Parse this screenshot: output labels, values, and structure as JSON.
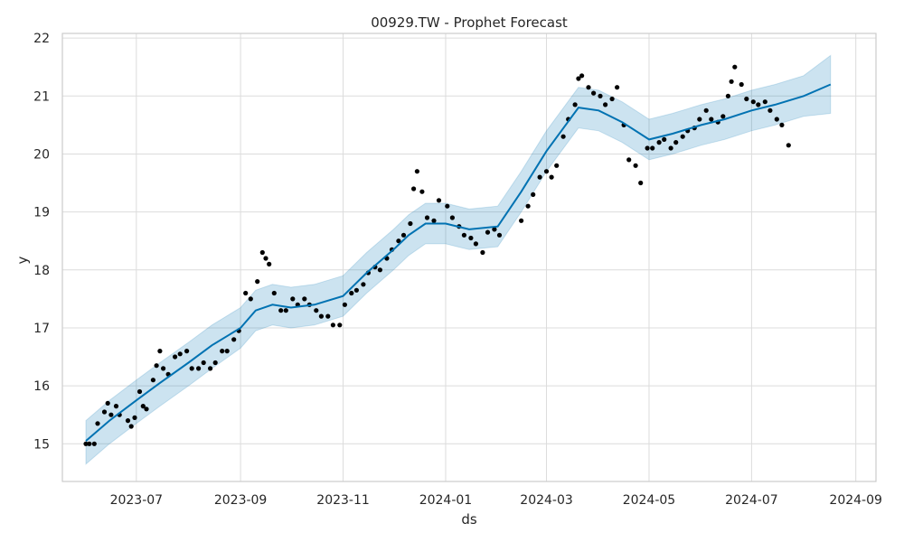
{
  "chart_data": {
    "type": "line",
    "title": "00929.TW - Prophet Forecast",
    "xlabel": "ds",
    "ylabel": "y",
    "x_ticks": [
      "2023-07",
      "2023-09",
      "2023-11",
      "2024-01",
      "2024-03",
      "2024-05",
      "2024-07",
      "2024-09"
    ],
    "y_ticks": [
      15,
      16,
      17,
      18,
      19,
      20,
      21,
      22
    ],
    "xlim": [
      "2023-05-18",
      "2024-09-13"
    ],
    "ylim": [
      14.35,
      22.08
    ],
    "grid": true,
    "colors": {
      "forecast": "#0072b2",
      "interval": "#0072b2",
      "points": "#000000",
      "grid": "#dcdcdc",
      "frame": "#cccccc"
    },
    "series": [
      {
        "kind": "forecast",
        "x": [
          "2023-06-01",
          "2023-06-15",
          "2023-07-01",
          "2023-07-15",
          "2023-08-01",
          "2023-08-15",
          "2023-09-01",
          "2023-09-10",
          "2023-09-20",
          "2023-10-01",
          "2023-10-15",
          "2023-11-01",
          "2023-11-15",
          "2023-12-01",
          "2023-12-10",
          "2023-12-20",
          "2024-01-01",
          "2024-01-15",
          "2024-02-01",
          "2024-02-15",
          "2024-03-01",
          "2024-03-20",
          "2024-04-01",
          "2024-04-15",
          "2024-05-01",
          "2024-05-15",
          "2024-06-01",
          "2024-06-15",
          "2024-07-01",
          "2024-07-15",
          "2024-08-01",
          "2024-08-17"
        ],
        "y": [
          15.05,
          15.4,
          15.75,
          16.05,
          16.4,
          16.7,
          17.0,
          17.3,
          17.4,
          17.35,
          17.4,
          17.55,
          17.95,
          18.35,
          18.6,
          18.8,
          18.8,
          18.7,
          18.75,
          19.35,
          20.05,
          20.8,
          20.75,
          20.55,
          20.25,
          20.35,
          20.5,
          20.6,
          20.75,
          20.85,
          21.0,
          21.2
        ]
      },
      {
        "kind": "uncertainty",
        "x": [
          "2023-06-01",
          "2023-06-15",
          "2023-07-01",
          "2023-07-15",
          "2023-08-01",
          "2023-08-15",
          "2023-09-01",
          "2023-09-10",
          "2023-09-20",
          "2023-10-01",
          "2023-10-15",
          "2023-11-01",
          "2023-11-15",
          "2023-12-01",
          "2023-12-10",
          "2023-12-20",
          "2024-01-01",
          "2024-01-15",
          "2024-02-01",
          "2024-02-15",
          "2024-03-01",
          "2024-03-20",
          "2024-04-01",
          "2024-04-15",
          "2024-05-01",
          "2024-05-15",
          "2024-06-01",
          "2024-06-15",
          "2024-07-01",
          "2024-07-15",
          "2024-08-01",
          "2024-08-17"
        ],
        "lower": [
          14.65,
          15.0,
          15.35,
          15.65,
          16.0,
          16.3,
          16.65,
          16.95,
          17.05,
          17.0,
          17.05,
          17.2,
          17.6,
          18.0,
          18.25,
          18.45,
          18.45,
          18.35,
          18.4,
          19.0,
          19.7,
          20.45,
          20.4,
          20.2,
          19.9,
          20.0,
          20.15,
          20.25,
          20.4,
          20.5,
          20.65,
          20.7
        ],
        "upper": [
          15.4,
          15.75,
          16.1,
          16.4,
          16.75,
          17.05,
          17.35,
          17.65,
          17.75,
          17.7,
          17.75,
          17.9,
          18.3,
          18.7,
          18.95,
          19.15,
          19.15,
          19.05,
          19.1,
          19.7,
          20.4,
          21.15,
          21.1,
          20.9,
          20.6,
          20.7,
          20.85,
          20.95,
          21.1,
          21.2,
          21.35,
          21.7
        ]
      },
      {
        "kind": "actual",
        "x": [
          "2023-06-01",
          "2023-06-03",
          "2023-06-06",
          "2023-06-08",
          "2023-06-12",
          "2023-06-14",
          "2023-06-16",
          "2023-06-19",
          "2023-06-21",
          "2023-06-26",
          "2023-06-28",
          "2023-06-30",
          "2023-07-03",
          "2023-07-05",
          "2023-07-07",
          "2023-07-11",
          "2023-07-13",
          "2023-07-15",
          "2023-07-17",
          "2023-07-20",
          "2023-07-24",
          "2023-07-27",
          "2023-07-31",
          "2023-08-03",
          "2023-08-07",
          "2023-08-10",
          "2023-08-14",
          "2023-08-17",
          "2023-08-21",
          "2023-08-24",
          "2023-08-28",
          "2023-08-31",
          "2023-09-04",
          "2023-09-07",
          "2023-09-11",
          "2023-09-14",
          "2023-09-16",
          "2023-09-18",
          "2023-09-21",
          "2023-09-25",
          "2023-09-28",
          "2023-10-02",
          "2023-10-05",
          "2023-10-09",
          "2023-10-12",
          "2023-10-16",
          "2023-10-19",
          "2023-10-23",
          "2023-10-26",
          "2023-10-30",
          "2023-11-02",
          "2023-11-06",
          "2023-11-09",
          "2023-11-13",
          "2023-11-16",
          "2023-11-20",
          "2023-11-23",
          "2023-11-27",
          "2023-11-30",
          "2023-12-04",
          "2023-12-07",
          "2023-12-11",
          "2023-12-13",
          "2023-12-15",
          "2023-12-18",
          "2023-12-21",
          "2023-12-25",
          "2023-12-28",
          "2024-01-02",
          "2024-01-05",
          "2024-01-09",
          "2024-01-12",
          "2024-01-16",
          "2024-01-19",
          "2024-01-23",
          "2024-01-26",
          "2024-01-30",
          "2024-02-02",
          "2024-02-15",
          "2024-02-19",
          "2024-02-22",
          "2024-02-26",
          "2024-03-01",
          "2024-03-04",
          "2024-03-07",
          "2024-03-11",
          "2024-03-14",
          "2024-03-18",
          "2024-03-20",
          "2024-03-22",
          "2024-03-26",
          "2024-03-29",
          "2024-04-02",
          "2024-04-05",
          "2024-04-09",
          "2024-04-12",
          "2024-04-16",
          "2024-04-19",
          "2024-04-23",
          "2024-04-26",
          "2024-04-30",
          "2024-05-03",
          "2024-05-07",
          "2024-05-10",
          "2024-05-14",
          "2024-05-17",
          "2024-05-21",
          "2024-05-24",
          "2024-05-28",
          "2024-05-31",
          "2024-06-04",
          "2024-06-07",
          "2024-06-11",
          "2024-06-14",
          "2024-06-17",
          "2024-06-19",
          "2024-06-21",
          "2024-06-25",
          "2024-06-28",
          "2024-07-02",
          "2024-07-05",
          "2024-07-09",
          "2024-07-12",
          "2024-07-16",
          "2024-07-19",
          "2024-07-23"
        ],
        "y": [
          15.0,
          15.0,
          15.0,
          15.35,
          15.55,
          15.7,
          15.5,
          15.65,
          15.5,
          15.4,
          15.3,
          15.45,
          15.9,
          15.65,
          15.6,
          16.1,
          16.35,
          16.6,
          16.3,
          16.2,
          16.5,
          16.55,
          16.6,
          16.3,
          16.3,
          16.4,
          16.3,
          16.4,
          16.6,
          16.6,
          16.8,
          16.95,
          17.6,
          17.5,
          17.8,
          18.3,
          18.2,
          18.1,
          17.6,
          17.3,
          17.3,
          17.5,
          17.4,
          17.5,
          17.4,
          17.3,
          17.2,
          17.2,
          17.05,
          17.05,
          17.4,
          17.6,
          17.65,
          17.75,
          17.95,
          18.05,
          18.0,
          18.2,
          18.35,
          18.5,
          18.6,
          18.8,
          19.4,
          19.7,
          19.35,
          18.9,
          18.85,
          19.2,
          19.1,
          18.9,
          18.75,
          18.6,
          18.55,
          18.45,
          18.3,
          18.65,
          18.7,
          18.6,
          18.85,
          19.1,
          19.3,
          19.6,
          19.7,
          19.6,
          19.8,
          20.3,
          20.6,
          20.85,
          21.3,
          21.35,
          21.15,
          21.05,
          21.0,
          20.85,
          20.95,
          21.15,
          20.5,
          19.9,
          19.8,
          19.5,
          20.1,
          20.1,
          20.2,
          20.25,
          20.1,
          20.2,
          20.3,
          20.4,
          20.45,
          20.6,
          20.75,
          20.6,
          20.55,
          20.65,
          21.0,
          21.25,
          21.5,
          21.2,
          20.95,
          20.9,
          20.85,
          20.9,
          20.75,
          20.6,
          20.5,
          20.15
        ]
      }
    ]
  }
}
